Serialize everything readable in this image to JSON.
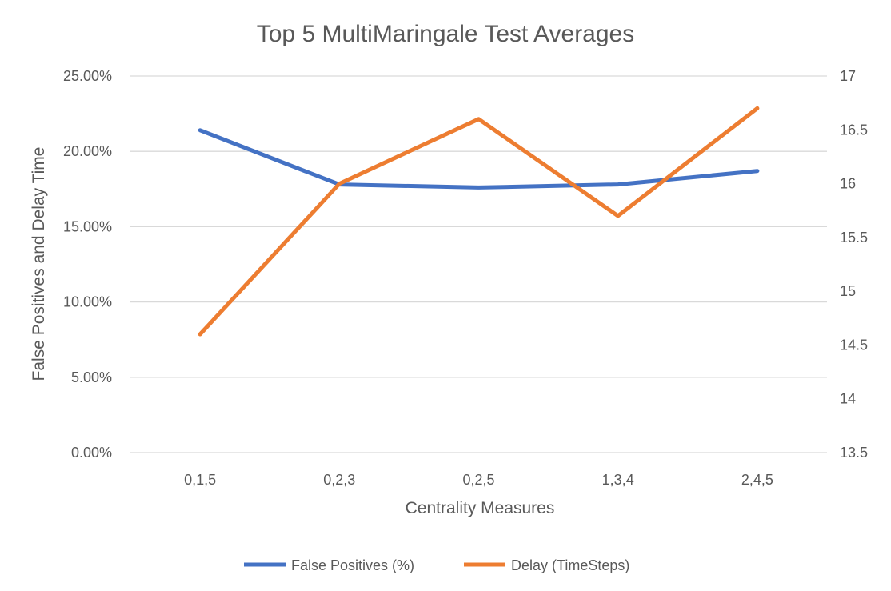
{
  "chart_data": {
    "type": "line",
    "title": "Top 5 MultiMaringale Test Averages",
    "xlabel": "Centrality Measures",
    "ylabel": "False Positives and Delay Time",
    "categories": [
      "0,1,5",
      "0,2,3",
      "0,2,5",
      "1,3,4",
      "2,4,5"
    ],
    "y_left": {
      "ylim": [
        0,
        0.25
      ],
      "ticks": [
        0,
        0.05,
        0.1,
        0.15,
        0.2,
        0.25
      ],
      "tick_labels": [
        "0.00%",
        "5.00%",
        "10.00%",
        "15.00%",
        "20.00%",
        "25.00%"
      ]
    },
    "y_right": {
      "ylim": [
        13.5,
        17
      ],
      "ticks": [
        13.5,
        14,
        14.5,
        15,
        15.5,
        16,
        16.5,
        17
      ],
      "tick_labels": [
        "13.5",
        "14",
        "14.5",
        "15",
        "15.5",
        "16",
        "16.5",
        "17"
      ]
    },
    "grid": true,
    "legend_position": "bottom",
    "series": [
      {
        "name": "False Positives (%)",
        "axis": "left",
        "color": "#4472C4",
        "values": [
          0.214,
          0.178,
          0.176,
          0.178,
          0.187
        ]
      },
      {
        "name": "Delay (TimeSteps)",
        "axis": "right",
        "color": "#ED7D31",
        "values": [
          14.6,
          16.0,
          16.6,
          15.7,
          16.7
        ]
      }
    ]
  }
}
